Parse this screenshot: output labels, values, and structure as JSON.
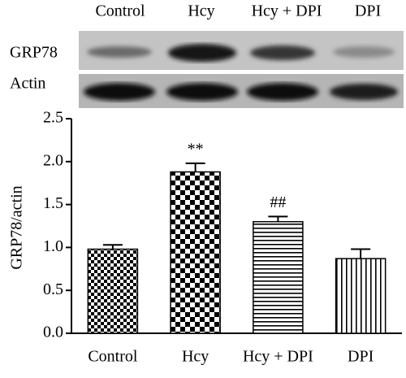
{
  "blot": {
    "lanes": [
      "Control",
      "Hcy",
      "Hcy + DPI",
      "DPI"
    ],
    "rows": [
      "GRP78",
      "Actin"
    ]
  },
  "chart_data": {
    "type": "bar",
    "ylabel": "GRP78/actin",
    "categories": [
      "Control",
      "Hcy",
      "Hcy + DPI",
      "DPI"
    ],
    "values": [
      0.98,
      1.88,
      1.3,
      0.87
    ],
    "errors": [
      0.05,
      0.1,
      0.06,
      0.11
    ],
    "annotations": [
      null,
      "**",
      "##",
      null
    ],
    "color": "#000000",
    "ylim": [
      0,
      2.5
    ],
    "yticks": [
      {
        "value": 0,
        "label": "0.0"
      },
      0.5,
      {
        "value": 1,
        "label": "1.0"
      },
      1.5,
      {
        "value": 2,
        "label": "2.0"
      },
      2.5
    ]
  }
}
